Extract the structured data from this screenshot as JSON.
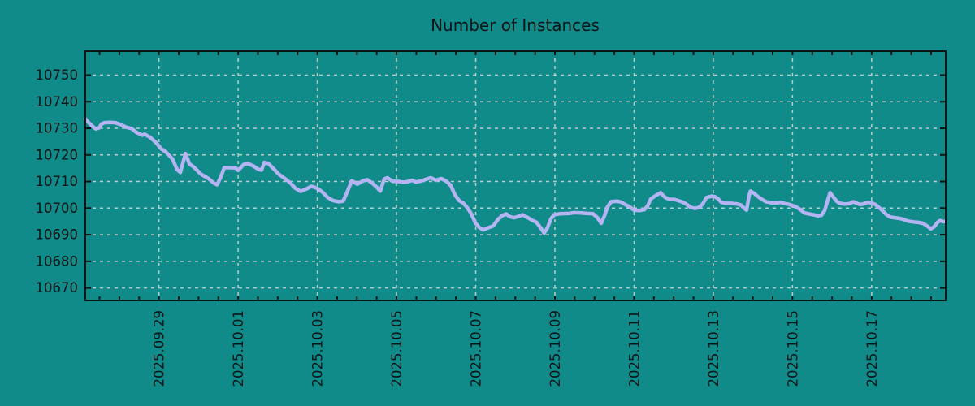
{
  "chart_data": {
    "type": "line",
    "title": "Number of Instances",
    "xlabel": "",
    "ylabel": "",
    "legend": "none",
    "grid": "dashed",
    "x_epoch_note": "t in days, t=2 corresponds to 2025.09.29, one unit = one day",
    "xlim": [
      0.14,
      21.87
    ],
    "ylim": [
      10665.3,
      10759.0
    ],
    "y_ticks": [
      10670,
      10680,
      10690,
      10700,
      10710,
      10720,
      10730,
      10740,
      10750
    ],
    "x_ticks": [
      {
        "t": 2,
        "label": "2025.09.29"
      },
      {
        "t": 4,
        "label": "2025.10.01"
      },
      {
        "t": 6,
        "label": "2025.10.03"
      },
      {
        "t": 8,
        "label": "2025.10.05"
      },
      {
        "t": 10,
        "label": "2025.10.07"
      },
      {
        "t": 12,
        "label": "2025.10.09"
      },
      {
        "t": 14,
        "label": "2025.10.11"
      },
      {
        "t": 16,
        "label": "2025.10.13"
      },
      {
        "t": 18,
        "label": "2025.10.15"
      },
      {
        "t": 20,
        "label": "2025.10.17"
      }
    ],
    "minor_x_tick_step_days": 0.5,
    "colors": {
      "background": "#118a8a",
      "line": "#b5b4f2",
      "grid": "#b9cdca",
      "axis": "#0a1414",
      "text": "#0a1414"
    },
    "series": [
      {
        "name": "Number of Instances",
        "points": [
          [
            0.14,
            10733.5
          ],
          [
            0.21,
            10732.4
          ],
          [
            0.29,
            10731.2
          ],
          [
            0.35,
            10730.4
          ],
          [
            0.41,
            10729.8
          ],
          [
            0.49,
            10730.2
          ],
          [
            0.55,
            10731.6
          ],
          [
            0.62,
            10732.1
          ],
          [
            0.76,
            10732.2
          ],
          [
            0.9,
            10732.1
          ],
          [
            1.03,
            10731.4
          ],
          [
            1.17,
            10730.4
          ],
          [
            1.31,
            10729.9
          ],
          [
            1.44,
            10728.4
          ],
          [
            1.58,
            10727.4
          ],
          [
            1.64,
            10727.8
          ],
          [
            1.78,
            10726.6
          ],
          [
            1.93,
            10724.6
          ],
          [
            2.05,
            10722.4
          ],
          [
            2.19,
            10720.9
          ],
          [
            2.34,
            10718.5
          ],
          [
            2.46,
            10714.5
          ],
          [
            2.54,
            10713.4
          ],
          [
            2.67,
            10720.5
          ],
          [
            2.77,
            10716.6
          ],
          [
            2.87,
            10715.6
          ],
          [
            3.06,
            10712.8
          ],
          [
            3.26,
            10711.0
          ],
          [
            3.38,
            10709.5
          ],
          [
            3.47,
            10708.8
          ],
          [
            3.57,
            10712.0
          ],
          [
            3.65,
            10715.3
          ],
          [
            3.79,
            10715.2
          ],
          [
            3.94,
            10715.1
          ],
          [
            4.0,
            10714.2
          ],
          [
            4.14,
            10716.4
          ],
          [
            4.25,
            10716.7
          ],
          [
            4.39,
            10715.8
          ],
          [
            4.51,
            10714.6
          ],
          [
            4.59,
            10714.3
          ],
          [
            4.66,
            10717.2
          ],
          [
            4.76,
            10716.8
          ],
          [
            4.9,
            10714.7
          ],
          [
            5.03,
            10712.7
          ],
          [
            5.17,
            10711.2
          ],
          [
            5.31,
            10709.6
          ],
          [
            5.44,
            10707.5
          ],
          [
            5.58,
            10706.3
          ],
          [
            5.72,
            10707.2
          ],
          [
            5.85,
            10708.2
          ],
          [
            5.99,
            10707.5
          ],
          [
            6.13,
            10706.0
          ],
          [
            6.26,
            10704.0
          ],
          [
            6.4,
            10702.8
          ],
          [
            6.54,
            10702.4
          ],
          [
            6.65,
            10702.6
          ],
          [
            6.75,
            10705.9
          ],
          [
            6.87,
            10710.3
          ],
          [
            7.01,
            10709.0
          ],
          [
            7.16,
            10710.3
          ],
          [
            7.26,
            10710.7
          ],
          [
            7.38,
            10709.5
          ],
          [
            7.49,
            10708.0
          ],
          [
            7.59,
            10706.4
          ],
          [
            7.69,
            10710.9
          ],
          [
            7.77,
            10711.4
          ],
          [
            7.9,
            10710.1
          ],
          [
            8.04,
            10710.0
          ],
          [
            8.18,
            10709.7
          ],
          [
            8.31,
            10710.0
          ],
          [
            8.39,
            10710.5
          ],
          [
            8.49,
            10709.8
          ],
          [
            8.62,
            10710.2
          ],
          [
            8.72,
            10710.7
          ],
          [
            8.86,
            10711.4
          ],
          [
            9.0,
            10710.5
          ],
          [
            9.13,
            10711.1
          ],
          [
            9.27,
            10710.0
          ],
          [
            9.37,
            10708.5
          ],
          [
            9.48,
            10704.9
          ],
          [
            9.58,
            10702.8
          ],
          [
            9.68,
            10702.0
          ],
          [
            9.78,
            10700.3
          ],
          [
            9.89,
            10697.8
          ],
          [
            9.99,
            10694.5
          ],
          [
            10.09,
            10692.7
          ],
          [
            10.19,
            10691.8
          ],
          [
            10.3,
            10692.5
          ],
          [
            10.44,
            10693.3
          ],
          [
            10.56,
            10695.7
          ],
          [
            10.67,
            10697.2
          ],
          [
            10.77,
            10697.8
          ],
          [
            10.87,
            10696.7
          ],
          [
            10.97,
            10696.4
          ],
          [
            11.08,
            10696.9
          ],
          [
            11.18,
            10697.5
          ],
          [
            11.28,
            10696.7
          ],
          [
            11.42,
            10695.5
          ],
          [
            11.53,
            10694.7
          ],
          [
            11.63,
            10692.8
          ],
          [
            11.73,
            10690.6
          ],
          [
            11.81,
            10692.5
          ],
          [
            11.9,
            10696.0
          ],
          [
            11.98,
            10697.5
          ],
          [
            12.14,
            10697.9
          ],
          [
            12.35,
            10698.0
          ],
          [
            12.49,
            10698.3
          ],
          [
            12.66,
            10698.2
          ],
          [
            12.82,
            10698.0
          ],
          [
            12.96,
            10697.9
          ],
          [
            13.07,
            10696.5
          ],
          [
            13.17,
            10694.3
          ],
          [
            13.25,
            10697.0
          ],
          [
            13.33,
            10700.5
          ],
          [
            13.42,
            10702.4
          ],
          [
            13.58,
            10702.6
          ],
          [
            13.68,
            10702.2
          ],
          [
            13.78,
            10701.3
          ],
          [
            13.89,
            10700.5
          ],
          [
            13.99,
            10699.3
          ],
          [
            14.13,
            10699.1
          ],
          [
            14.26,
            10699.4
          ],
          [
            14.34,
            10700.8
          ],
          [
            14.42,
            10703.4
          ],
          [
            14.52,
            10704.5
          ],
          [
            14.67,
            10705.8
          ],
          [
            14.75,
            10704.5
          ],
          [
            14.81,
            10703.8
          ],
          [
            14.91,
            10703.3
          ],
          [
            15.01,
            10703.3
          ],
          [
            15.12,
            10702.8
          ],
          [
            15.22,
            10702.3
          ],
          [
            15.32,
            10701.5
          ],
          [
            15.42,
            10700.4
          ],
          [
            15.53,
            10699.9
          ],
          [
            15.63,
            10700.2
          ],
          [
            15.73,
            10701.5
          ],
          [
            15.83,
            10704.0
          ],
          [
            15.96,
            10704.5
          ],
          [
            16.04,
            10704.3
          ],
          [
            16.12,
            10703.5
          ],
          [
            16.2,
            10702.2
          ],
          [
            16.31,
            10701.8
          ],
          [
            16.45,
            10701.8
          ],
          [
            16.59,
            10701.6
          ],
          [
            16.7,
            10701.2
          ],
          [
            16.78,
            10699.9
          ],
          [
            16.84,
            10699.2
          ],
          [
            16.9,
            10704.5
          ],
          [
            16.94,
            10706.4
          ],
          [
            17.03,
            10705.6
          ],
          [
            17.13,
            10704.3
          ],
          [
            17.23,
            10703.3
          ],
          [
            17.33,
            10702.4
          ],
          [
            17.48,
            10702.0
          ],
          [
            17.62,
            10702.0
          ],
          [
            17.7,
            10702.2
          ],
          [
            17.78,
            10701.8
          ],
          [
            17.89,
            10701.5
          ],
          [
            17.99,
            10701.0
          ],
          [
            18.09,
            10700.5
          ],
          [
            18.19,
            10699.5
          ],
          [
            18.3,
            10698.2
          ],
          [
            18.42,
            10697.8
          ],
          [
            18.54,
            10697.5
          ],
          [
            18.64,
            10697.1
          ],
          [
            18.73,
            10697.3
          ],
          [
            18.81,
            10699.0
          ],
          [
            18.89,
            10703.0
          ],
          [
            18.95,
            10705.8
          ],
          [
            19.04,
            10704.0
          ],
          [
            19.12,
            10702.5
          ],
          [
            19.2,
            10701.8
          ],
          [
            19.32,
            10701.5
          ],
          [
            19.45,
            10701.7
          ],
          [
            19.53,
            10702.4
          ],
          [
            19.61,
            10701.9
          ],
          [
            19.69,
            10701.4
          ],
          [
            19.77,
            10701.5
          ],
          [
            19.9,
            10702.2
          ],
          [
            20.0,
            10701.9
          ],
          [
            20.1,
            10701.3
          ],
          [
            20.18,
            10700.3
          ],
          [
            20.29,
            10698.8
          ],
          [
            20.37,
            10697.6
          ],
          [
            20.47,
            10696.6
          ],
          [
            20.59,
            10696.4
          ],
          [
            20.72,
            10696.1
          ],
          [
            20.82,
            10695.7
          ],
          [
            20.92,
            10695.1
          ],
          [
            21.06,
            10694.8
          ],
          [
            21.19,
            10694.6
          ],
          [
            21.29,
            10694.3
          ],
          [
            21.39,
            10693.4
          ],
          [
            21.49,
            10692.2
          ],
          [
            21.58,
            10693.0
          ],
          [
            21.66,
            10694.6
          ],
          [
            21.72,
            10695.3
          ],
          [
            21.8,
            10695.0
          ],
          [
            21.87,
            10694.9
          ]
        ]
      }
    ]
  }
}
